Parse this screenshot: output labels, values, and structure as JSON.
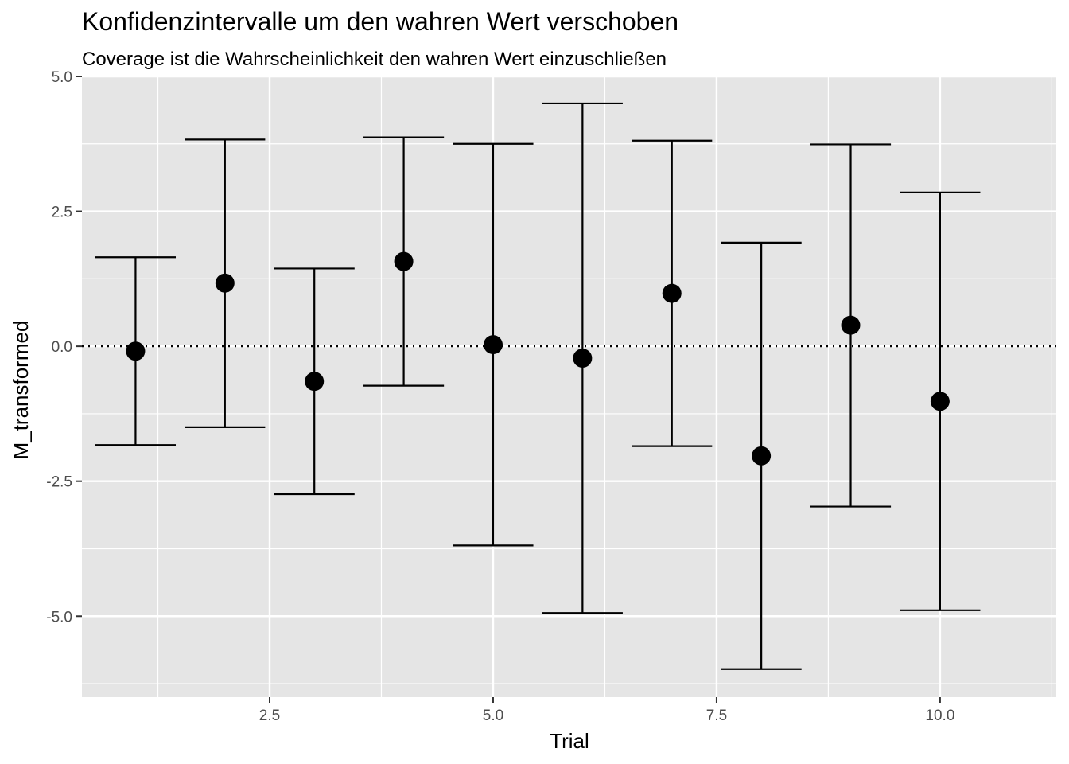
{
  "chart_data": {
    "type": "scatter",
    "title": "Konfidenzintervalle um den wahren Wert verschoben",
    "subtitle": "Coverage ist die Wahrscheinlichkeit den wahren Wert einzuschließen",
    "xlabel": "Trial",
    "ylabel": "M_transformed",
    "xlim": [
      0.4,
      11.3
    ],
    "ylim": [
      -6.5,
      5.0
    ],
    "x_ticks": [
      2.5,
      5.0,
      7.5,
      10.0
    ],
    "x_tick_labels": [
      "2.5",
      "5.0",
      "7.5",
      "10.0"
    ],
    "y_ticks": [
      5.0,
      2.5,
      0.0,
      -2.5,
      -5.0
    ],
    "y_tick_labels": [
      "5.0",
      "2.5",
      "0.0",
      "-2.5",
      "-5.0"
    ],
    "reference_line": {
      "y": 0,
      "style": "dotted"
    },
    "grid": true,
    "points": [
      {
        "x": 1,
        "y": -0.09,
        "lower": -1.83,
        "upper": 1.65
      },
      {
        "x": 2,
        "y": 1.17,
        "lower": -1.5,
        "upper": 3.83
      },
      {
        "x": 3,
        "y": -0.65,
        "lower": -2.74,
        "upper": 1.44
      },
      {
        "x": 4,
        "y": 1.57,
        "lower": -0.73,
        "upper": 3.87
      },
      {
        "x": 5,
        "y": 0.03,
        "lower": -3.69,
        "upper": 3.75
      },
      {
        "x": 6,
        "y": -0.22,
        "lower": -4.94,
        "upper": 4.5
      },
      {
        "x": 7,
        "y": 0.98,
        "lower": -1.85,
        "upper": 3.81
      },
      {
        "x": 8,
        "y": -2.03,
        "lower": -5.98,
        "upper": 1.92
      },
      {
        "x": 9,
        "y": 0.39,
        "lower": -2.97,
        "upper": 3.74
      },
      {
        "x": 10,
        "y": -1.02,
        "lower": -4.89,
        "upper": 2.85
      }
    ],
    "colors": {
      "panel_background": "#e5e5e5",
      "grid_line": "#ffffff",
      "point": "#000000",
      "errorbar": "#000000",
      "tick_label": "#4d4d4d"
    }
  }
}
